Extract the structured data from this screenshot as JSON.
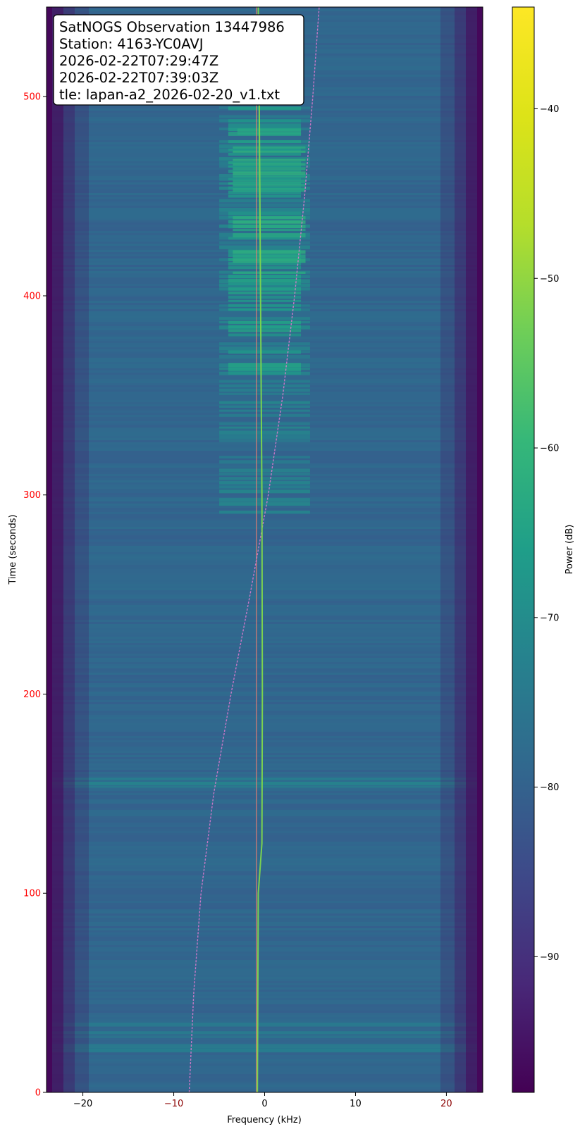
{
  "chart_data": {
    "type": "heatmap",
    "info_box": {
      "lines": [
        "SatNOGS Observation 13447986",
        "Station: 4163-YC0AVJ",
        "2026-02-22T07:29:47Z",
        "2026-02-22T07:39:03Z",
        "tle: lapan-a2_2026-02-20_v1.txt"
      ]
    },
    "xlabel": "Frequency (kHz)",
    "ylabel": "Time (seconds)",
    "xlim": [
      -24,
      24
    ],
    "ylim": [
      0,
      545
    ],
    "x_ticks": [
      {
        "value": -20,
        "label": "−20",
        "color": "#000000"
      },
      {
        "value": -10,
        "label": "−10",
        "color": "#8b0000"
      },
      {
        "value": 0,
        "label": "0",
        "color": "#000000"
      },
      {
        "value": 10,
        "label": "10",
        "color": "#000000"
      },
      {
        "value": 20,
        "label": "20",
        "color": "#8b0000"
      }
    ],
    "y_ticks": [
      {
        "value": 0,
        "label": "0"
      },
      {
        "value": 100,
        "label": "100"
      },
      {
        "value": 200,
        "label": "200"
      },
      {
        "value": 300,
        "label": "300"
      },
      {
        "value": 400,
        "label": "400"
      },
      {
        "value": 500,
        "label": "500"
      }
    ],
    "y_tick_color": "#ff0000",
    "colorbar": {
      "label": "Power (dB)",
      "range": [
        -98,
        -34
      ],
      "colormap": "viridis",
      "ticks": [
        {
          "value": -40,
          "label": "−40"
        },
        {
          "value": -50,
          "label": "−50"
        },
        {
          "value": -60,
          "label": "−60"
        },
        {
          "value": -70,
          "label": "−70"
        },
        {
          "value": -80,
          "label": "−80"
        },
        {
          "value": -90,
          "label": "−90"
        }
      ]
    },
    "background_power_db": -79,
    "edge_power_db": -97,
    "signal": {
      "name": "satellite carrier",
      "points": [
        {
          "t": 0,
          "f": -0.8
        },
        {
          "t": 100,
          "f": -0.7
        },
        {
          "t": 125,
          "f": -0.3
        },
        {
          "t": 200,
          "f": -0.25
        },
        {
          "t": 300,
          "f": -0.3
        },
        {
          "t": 400,
          "f": -0.45
        },
        {
          "t": 500,
          "f": -0.6
        },
        {
          "t": 545,
          "f": -0.7
        }
      ]
    },
    "reference_line": {
      "f": -0.9,
      "color": "#f08070"
    },
    "doppler_curve": {
      "color": "#e07ad0",
      "points": [
        {
          "t": 0,
          "f": -8.3
        },
        {
          "t": 50,
          "f": -7.8
        },
        {
          "t": 100,
          "f": -7.0
        },
        {
          "t": 150,
          "f": -5.6
        },
        {
          "t": 200,
          "f": -3.7
        },
        {
          "t": 250,
          "f": -1.6
        },
        {
          "t": 300,
          "f": 0.4
        },
        {
          "t": 350,
          "f": 2.0
        },
        {
          "t": 400,
          "f": 3.3
        },
        {
          "t": 450,
          "f": 4.4
        },
        {
          "t": 500,
          "f": 5.3
        },
        {
          "t": 545,
          "f": 6.0
        }
      ]
    },
    "bursts": [
      {
        "t0": 290,
        "t1": 495,
        "f0": -5,
        "f1": 5,
        "power_db": -72
      },
      {
        "t0": 360,
        "t1": 495,
        "f0": -4,
        "f1": 4,
        "power_db": -66
      },
      {
        "t0": 410,
        "t1": 440,
        "f0": -3.5,
        "f1": 4.5,
        "power_db": -62
      },
      {
        "t0": 452,
        "t1": 475,
        "f0": -3.5,
        "f1": 4.5,
        "power_db": -63
      },
      {
        "t0": 480,
        "t1": 492,
        "f0": -3,
        "f1": 4,
        "power_db": -64
      },
      {
        "t0": 152,
        "t1": 158,
        "f0": -24,
        "f1": 24,
        "power_db": -72
      },
      {
        "t0": 20,
        "t1": 35,
        "f0": -24,
        "f1": 24,
        "power_db": -74
      }
    ],
    "grid": false
  }
}
